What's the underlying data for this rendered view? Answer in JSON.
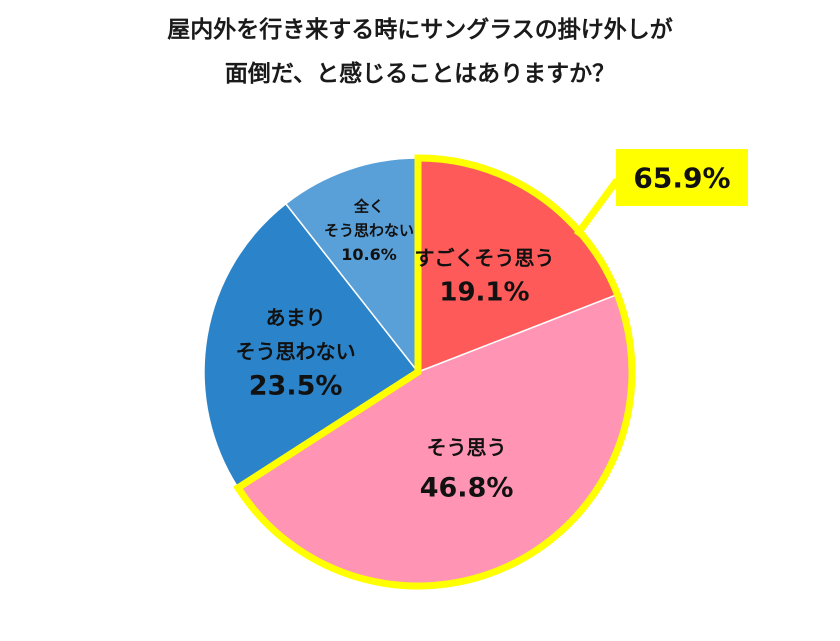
{
  "chart_data": {
    "type": "pie",
    "title_lines": [
      "屋内外を行き来する時にサングラスの掛け外しが",
      "面倒だ、と感じることはありますか？"
    ],
    "slices": [
      {
        "label_lines": [
          "すごくそう思う"
        ],
        "value": 19.1,
        "value_label": "19.1%",
        "color": "#ff5a5a",
        "highlight": true
      },
      {
        "label_lines": [
          "そう思う"
        ],
        "value": 46.8,
        "value_label": "46.8%",
        "color": "#ff94b4",
        "highlight": true
      },
      {
        "label_lines": [
          "あまり",
          "そう思わない"
        ],
        "value": 23.5,
        "value_label": "23.5%",
        "color": "#2b84c9",
        "highlight": false
      },
      {
        "label_lines": [
          "全く",
          "そう思わない"
        ],
        "value": 10.6,
        "value_label": "10.6%",
        "color": "#5aa0d8",
        "highlight": false
      }
    ],
    "callout": {
      "text": "65.9%",
      "background": "#ffff00",
      "border": "#ffff00"
    },
    "highlight_border_color": "#ffff00",
    "start_angle": "12 o'clock",
    "direction": "clockwise"
  }
}
